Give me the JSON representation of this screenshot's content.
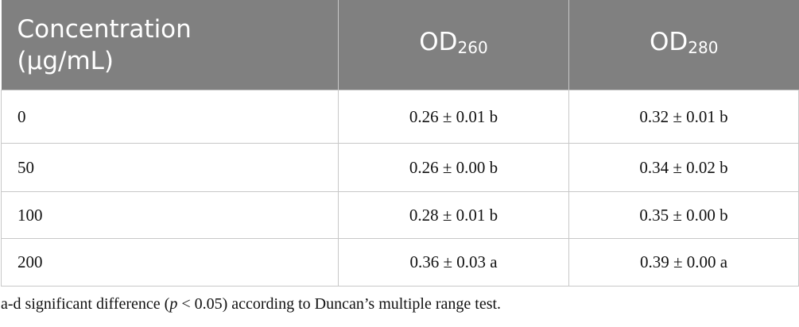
{
  "table": {
    "header": [
      {
        "text": "Concentration (μg/mL)"
      },
      {
        "text": "OD",
        "subscript": "260"
      },
      {
        "text": "OD",
        "subscript": "280"
      }
    ],
    "rows": [
      [
        "0",
        "0.26 ± 0.01 b",
        "0.32 ± 0.01 b"
      ],
      [
        "50",
        "0.26 ± 0.00 b",
        "0.34 ± 0.02 b"
      ],
      [
        "100",
        "0.28 ± 0.01 b",
        "0.35 ± 0.00 b"
      ],
      [
        "200",
        "0.36 ± 0.03 a",
        "0.39 ± 0.00 a"
      ]
    ]
  },
  "footnote": {
    "before": "a-d significant difference (",
    "italic": "p",
    "after": " < 0.05) according to Duncan’s multiple range test."
  }
}
